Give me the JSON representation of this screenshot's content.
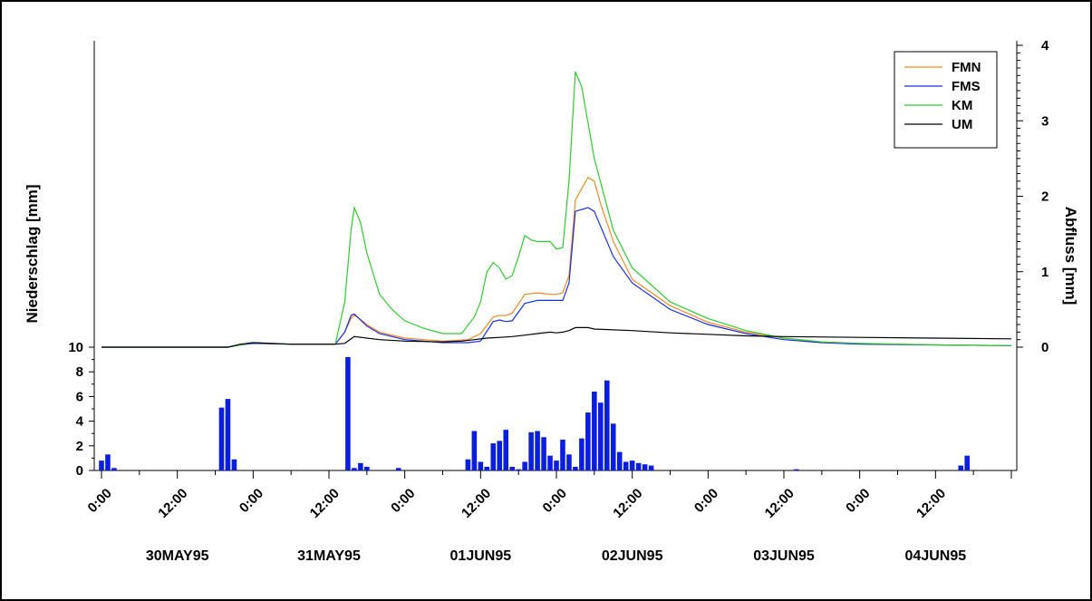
{
  "chart_data": {
    "type": "line",
    "ylabel_left": "Niederschlag [mm]",
    "ylabel_right": "Abfluss [mm]",
    "legend_position": "top-right",
    "x_tick_labels": [
      "0:00",
      "12:00",
      "0:00",
      "12:00",
      "0:00",
      "12:00",
      "0:00",
      "12:00",
      "0:00",
      "12:00",
      "0:00",
      "12:00"
    ],
    "date_labels": [
      "30MAY95",
      "31MAY95",
      "01JUN95",
      "02JUN95",
      "03JUN95",
      "04JUN95"
    ],
    "xlim_hours": [
      0,
      144
    ],
    "runoff": {
      "ylim": [
        0,
        4
      ],
      "yticks": [
        "0",
        "1",
        "2",
        "3",
        "4"
      ],
      "series": [
        {
          "name": "FMN",
          "color": "#f08a24",
          "x": [
            0,
            20,
            22,
            24,
            30,
            37,
            38.5,
            39.5,
            40,
            40.5,
            42,
            44,
            48,
            54,
            58,
            60,
            62,
            63,
            64,
            65,
            67,
            69,
            70,
            71,
            72,
            73,
            74,
            75,
            77,
            78,
            79,
            81,
            84,
            90,
            96,
            102,
            108,
            114,
            120,
            132,
            144
          ],
          "y": [
            0,
            0,
            0.03,
            0.05,
            0.04,
            0.04,
            0.2,
            0.38,
            0.42,
            0.4,
            0.3,
            0.2,
            0.12,
            0.08,
            0.1,
            0.18,
            0.4,
            0.42,
            0.42,
            0.45,
            0.7,
            0.72,
            0.71,
            0.7,
            0.7,
            0.72,
            0.95,
            1.95,
            2.25,
            2.2,
            1.9,
            1.4,
            0.9,
            0.55,
            0.33,
            0.2,
            0.12,
            0.07,
            0.05,
            0.03,
            0.02
          ]
        },
        {
          "name": "FMS",
          "color": "#1a2ee6",
          "x": [
            0,
            20,
            22,
            24,
            30,
            37,
            38.5,
            39.5,
            40,
            40.5,
            42,
            44,
            48,
            54,
            58,
            60,
            62,
            63,
            64,
            65,
            67,
            69,
            70,
            71,
            72,
            73,
            74,
            75,
            77,
            78,
            79,
            81,
            84,
            90,
            96,
            102,
            108,
            114,
            120,
            132,
            144
          ],
          "y": [
            0,
            0,
            0.03,
            0.05,
            0.04,
            0.04,
            0.2,
            0.42,
            0.44,
            0.4,
            0.28,
            0.18,
            0.1,
            0.06,
            0.06,
            0.08,
            0.34,
            0.36,
            0.34,
            0.35,
            0.58,
            0.62,
            0.62,
            0.62,
            0.62,
            0.62,
            0.85,
            1.8,
            1.85,
            1.8,
            1.6,
            1.2,
            0.85,
            0.5,
            0.3,
            0.18,
            0.1,
            0.06,
            0.04,
            0.03,
            0.02
          ]
        },
        {
          "name": "KM",
          "color": "#2ecc2e",
          "x": [
            0,
            20,
            22,
            24,
            30,
            37,
            38.5,
            39.5,
            40,
            41,
            42,
            44,
            46,
            48,
            51,
            54,
            57,
            59,
            60,
            61,
            62,
            63,
            64,
            65,
            66,
            67,
            68,
            69,
            70,
            71,
            72,
            73,
            74,
            75,
            76,
            78,
            81,
            84,
            90,
            96,
            102,
            108,
            114,
            120,
            132,
            144
          ],
          "y": [
            0,
            0,
            0.03,
            0.06,
            0.04,
            0.04,
            0.6,
            1.55,
            1.85,
            1.65,
            1.25,
            0.7,
            0.5,
            0.35,
            0.25,
            0.18,
            0.18,
            0.4,
            0.6,
            1.0,
            1.12,
            1.05,
            0.9,
            0.95,
            1.2,
            1.48,
            1.42,
            1.4,
            1.4,
            1.4,
            1.3,
            1.32,
            2.2,
            3.65,
            3.45,
            2.5,
            1.55,
            1.05,
            0.6,
            0.38,
            0.22,
            0.12,
            0.07,
            0.05,
            0.03,
            0.02
          ]
        },
        {
          "name": "UM",
          "color": "#000000",
          "x": [
            0,
            20,
            22,
            24,
            30,
            37,
            38.5,
            40,
            44,
            48,
            54,
            57,
            59,
            61,
            63,
            65,
            67,
            69,
            71,
            72,
            73,
            74,
            75,
            76,
            77,
            78,
            84,
            90,
            96,
            102,
            108,
            120,
            132,
            144
          ],
          "y": [
            0,
            0,
            0.04,
            0.06,
            0.04,
            0.04,
            0.05,
            0.14,
            0.1,
            0.08,
            0.07,
            0.08,
            0.1,
            0.12,
            0.13,
            0.14,
            0.16,
            0.18,
            0.2,
            0.19,
            0.2,
            0.22,
            0.26,
            0.26,
            0.26,
            0.24,
            0.22,
            0.19,
            0.17,
            0.15,
            0.14,
            0.13,
            0.12,
            0.11
          ]
        }
      ]
    },
    "precipitation": {
      "ylim": [
        0,
        10
      ],
      "yticks": [
        "0",
        "2",
        "4",
        "6",
        "8",
        "10"
      ],
      "color": "#0a1ee0",
      "hours": [
        0,
        1,
        2,
        19,
        20,
        21,
        39,
        40,
        41,
        42,
        47,
        58,
        59,
        60,
        61,
        62,
        63,
        64,
        65,
        66,
        67,
        68,
        69,
        70,
        71,
        72,
        73,
        74,
        75,
        76,
        77,
        78,
        79,
        80,
        81,
        82,
        83,
        84,
        85,
        86,
        87,
        110,
        136,
        137
      ],
      "values": [
        0.8,
        1.3,
        0.2,
        5.1,
        5.8,
        0.9,
        9.2,
        0.2,
        0.6,
        0.3,
        0.2,
        0.9,
        3.2,
        0.7,
        0.3,
        2.2,
        2.4,
        3.3,
        0.3,
        0.1,
        0.7,
        3.1,
        3.2,
        2.7,
        1.2,
        0.8,
        2.5,
        1.3,
        0.3,
        2.6,
        4.7,
        6.4,
        5.5,
        7.3,
        3.8,
        1.5,
        0.7,
        0.8,
        0.6,
        0.5,
        0.4,
        0.1,
        0.4,
        1.2
      ]
    }
  }
}
